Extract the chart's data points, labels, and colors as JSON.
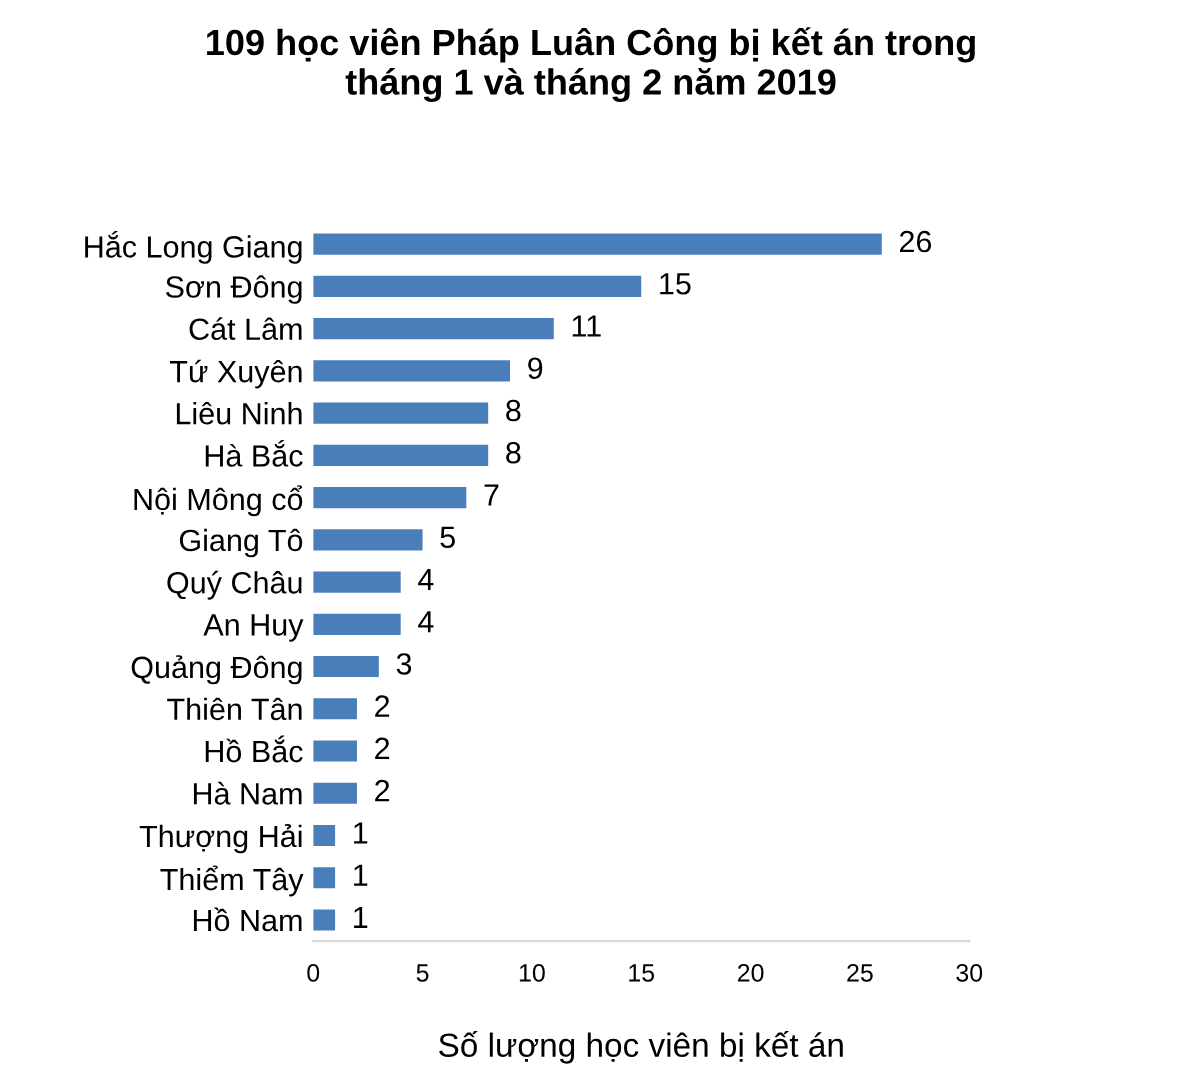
{
  "chart_data": {
    "type": "bar",
    "orientation": "horizontal",
    "title": "109 học viên Pháp Luân Công bị kết án trong\ntháng 1 và tháng 2 năm 2019",
    "xlabel": "Số lượng học viên bị kết án",
    "categories": [
      "Hắc Long Giang",
      "Sơn Đông",
      "Cát Lâm",
      "Tứ Xuyên",
      "Liêu Ninh",
      "Hà Bắc",
      "Nội Mông cổ",
      "Giang Tô",
      "Quý Châu",
      "An Huy",
      "Quảng Đông",
      "Thiên Tân",
      "Hồ Bắc",
      "Hà Nam",
      "Thượng Hải",
      "Thiểm Tây",
      "Hồ Nam"
    ],
    "values": [
      26,
      15,
      11,
      9,
      8,
      8,
      7,
      5,
      4,
      4,
      3,
      2,
      2,
      2,
      1,
      1,
      1
    ],
    "color": "#4a7ebb",
    "xlim": [
      0,
      30
    ],
    "xticks": [
      0,
      5,
      10,
      15,
      20,
      25,
      30
    ],
    "data_labels": true,
    "grid": false
  }
}
